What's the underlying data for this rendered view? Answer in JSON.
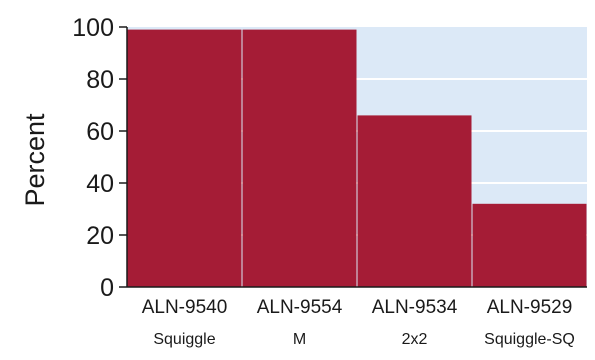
{
  "chart_data": {
    "type": "bar",
    "title": "",
    "xlabel": "",
    "ylabel": "Percent",
    "ylim": [
      0,
      100
    ],
    "yticks": [
      0,
      20,
      40,
      60,
      80,
      100
    ],
    "grid": true,
    "categories": [
      {
        "line1": "ALN-9540",
        "line2": "Squiggle",
        "value": 99
      },
      {
        "line1": "ALN-9554",
        "line2": "M",
        "value": 99
      },
      {
        "line1": "ALN-9534",
        "line2": "2x2",
        "value": 66
      },
      {
        "line1": "ALN-9529",
        "line2": "Squiggle-SQ",
        "value": 32
      }
    ],
    "colors": {
      "bar": "#a51c36",
      "plot_background": "#dce9f7",
      "gridline": "#ffffff",
      "axis": "#1a1a1a"
    }
  }
}
